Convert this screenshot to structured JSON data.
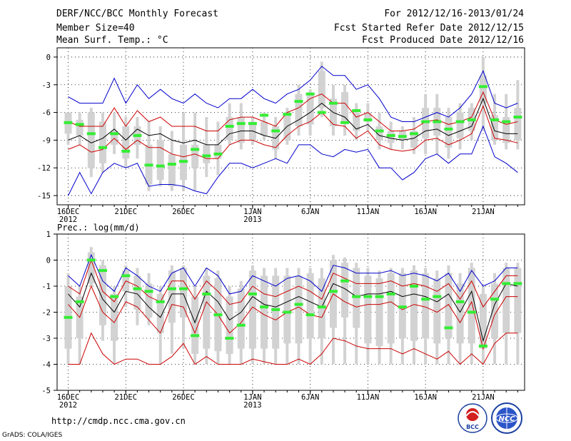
{
  "header": {
    "title": "DERF/NCC/BCC Monthly Forecast",
    "member_size": "Member Size=40",
    "variable": "Mean Surf. Temp.: °C",
    "period": "For 2012/12/16-2013/01/24",
    "started": "Fcst Started Refer Date 2012/12/15",
    "produced": "Fcst Produced Date 2012/12/16"
  },
  "footer": {
    "url": "http://cmdp.ncc.cma.gov.cn",
    "grads": "GrADS: COLA/IGES",
    "logo1_text": "BCC",
    "logo2_text": "NCC"
  },
  "colors": {
    "envelope": "#0000cc",
    "spread": "#cc0000",
    "mean": "#000000",
    "box": "#d2d2d2",
    "median": "#33ee33"
  },
  "chart_data": [
    {
      "type": "box",
      "title": "Mean Surf. Temp.: °C",
      "xlabel": "",
      "ylabel": "°C",
      "ylim": [
        -16,
        1
      ],
      "yticks": [
        0,
        -3,
        -6,
        -9,
        -12,
        -15
      ],
      "xtick_labels": [
        {
          "day": 0,
          "label": "16DEC",
          "sub": "2012"
        },
        {
          "day": 5,
          "label": "21DEC",
          "sub": ""
        },
        {
          "day": 10,
          "label": "26DEC",
          "sub": ""
        },
        {
          "day": 16,
          "label": "1JAN",
          "sub": "2013"
        },
        {
          "day": 21,
          "label": "6JAN",
          "sub": ""
        },
        {
          "day": 26,
          "label": "11JAN",
          "sub": ""
        },
        {
          "day": 31,
          "label": "16JAN",
          "sub": ""
        },
        {
          "day": 36,
          "label": "21JAN",
          "sub": ""
        }
      ],
      "days": 40,
      "series": [
        {
          "name": "max",
          "color_key": "envelope",
          "values": [
            -4.3,
            -5.0,
            -5.0,
            -5.0,
            -2.3,
            -5.0,
            -3.0,
            -4.5,
            -3.5,
            -4.5,
            -5.0,
            -4.0,
            -5.0,
            -5.5,
            -4.5,
            -4.5,
            -3.5,
            -4.5,
            -5.0,
            -4.0,
            -3.5,
            -2.5,
            -1.0,
            -2.0,
            -2.0,
            -3.5,
            -3.0,
            -4.5,
            -6.5,
            -7.0,
            -7.0,
            -6.5,
            -6.0,
            -6.5,
            -5.5,
            -4.0,
            -1.5,
            -5.0,
            -5.5,
            -5.0
          ]
        },
        {
          "name": "upper",
          "color_key": "spread",
          "values": [
            -7.0,
            -7.5,
            -7.5,
            -7.5,
            -5.5,
            -7.5,
            -5.8,
            -7.0,
            -6.5,
            -7.5,
            -7.5,
            -7.5,
            -8.0,
            -8.0,
            -6.8,
            -6.5,
            -6.5,
            -7.0,
            -7.5,
            -6.0,
            -5.5,
            -4.5,
            -4.0,
            -5.0,
            -5.0,
            -6.5,
            -6.0,
            -7.0,
            -8.0,
            -8.0,
            -7.8,
            -7.0,
            -6.8,
            -7.3,
            -7.0,
            -6.5,
            -3.8,
            -6.8,
            -7.3,
            -7.0
          ]
        },
        {
          "name": "mean",
          "color_key": "mean",
          "values": [
            -9.0,
            -8.5,
            -9.3,
            -8.8,
            -7.8,
            -9.0,
            -7.8,
            -8.5,
            -8.3,
            -9.0,
            -9.3,
            -9.0,
            -9.5,
            -9.5,
            -8.3,
            -8.0,
            -8.0,
            -8.5,
            -8.8,
            -7.5,
            -6.8,
            -6.0,
            -5.0,
            -6.0,
            -6.5,
            -7.8,
            -7.3,
            -8.5,
            -8.8,
            -9.0,
            -8.8,
            -8.0,
            -7.8,
            -8.5,
            -8.0,
            -7.5,
            -4.5,
            -8.0,
            -8.3,
            -8.3
          ]
        },
        {
          "name": "lower",
          "color_key": "spread",
          "values": [
            -10.0,
            -9.5,
            -10.3,
            -10.0,
            -8.8,
            -10.0,
            -9.0,
            -9.8,
            -9.8,
            -10.5,
            -10.8,
            -10.5,
            -11.0,
            -11.0,
            -9.5,
            -9.0,
            -9.0,
            -9.5,
            -9.8,
            -8.5,
            -7.5,
            -7.0,
            -6.0,
            -7.3,
            -7.5,
            -8.8,
            -8.0,
            -9.5,
            -10.0,
            -10.2,
            -10.0,
            -9.0,
            -8.8,
            -9.5,
            -9.0,
            -8.3,
            -5.3,
            -8.8,
            -9.0,
            -9.3
          ]
        },
        {
          "name": "min",
          "color_key": "envelope",
          "values": [
            -15.0,
            -12.5,
            -14.8,
            -12.5,
            -11.5,
            -12.0,
            -11.5,
            -14.0,
            -13.8,
            -13.8,
            -14.0,
            -14.5,
            -14.8,
            -13.0,
            -11.5,
            -11.5,
            -12.0,
            -11.5,
            -11.0,
            -11.5,
            -9.5,
            -9.5,
            -10.5,
            -10.8,
            -10.0,
            -10.3,
            -10.0,
            -12.0,
            -12.0,
            -13.3,
            -12.5,
            -11.0,
            -10.5,
            -11.5,
            -10.5,
            -10.5,
            -7.5,
            -10.8,
            -11.5,
            -12.5
          ]
        },
        {
          "name": "box_q1",
          "values": [
            -8.3,
            -8.5,
            -12.0,
            -11.5,
            -9.5,
            -11.0,
            -9.5,
            -13.8,
            -13.3,
            -14.0,
            -13.3,
            -12.0,
            -11.5,
            -11.0,
            -9.0,
            -9.3,
            -9.0,
            -8.5,
            -10.0,
            -9.0,
            -7.5,
            -7.3,
            -5.5,
            -7.5,
            -7.0,
            -8.0,
            -7.0,
            -9.0,
            -9.3,
            -9.0,
            -9.8,
            -8.8,
            -8.5,
            -9.8,
            -8.8,
            -8.0,
            -5.0,
            -9.0,
            -9.3,
            -9.0
          ]
        },
        {
          "name": "box_q3",
          "values": [
            -6.0,
            -6.8,
            -6.0,
            -7.0,
            -8.0,
            -7.5,
            -7.5,
            -9.5,
            -9.0,
            -10.5,
            -9.5,
            -9.5,
            -9.5,
            -9.5,
            -6.5,
            -6.5,
            -7.0,
            -7.0,
            -7.5,
            -6.0,
            -4.0,
            -4.0,
            -1.5,
            -4.5,
            -3.8,
            -6.0,
            -6.0,
            -7.5,
            -8.0,
            -8.0,
            -8.0,
            -5.5,
            -5.5,
            -6.5,
            -6.0,
            -5.5,
            -2.0,
            -6.3,
            -6.5,
            -5.5
          ]
        },
        {
          "name": "whisker_hi",
          "values": [
            -6.0,
            -6.0,
            -5.5,
            -6.0,
            -6.0,
            -6.5,
            -6.5,
            -7.0,
            -7.5,
            -8.0,
            -6.0,
            -6.0,
            -6.5,
            -7.0,
            -5.0,
            -5.0,
            -6.5,
            -6.0,
            -6.5,
            -5.5,
            -3.0,
            -3.5,
            -0.5,
            -3.0,
            -3.0,
            -5.0,
            -5.0,
            -6.0,
            -7.0,
            -7.5,
            -6.5,
            -4.0,
            -4.0,
            -5.5,
            -5.0,
            -5.0,
            0.0,
            -4.0,
            -4.0,
            -2.5
          ]
        },
        {
          "name": "whisker_lo",
          "values": [
            -9.5,
            -9.5,
            -13.0,
            -12.5,
            -10.5,
            -12.0,
            -11.0,
            -14.5,
            -14.0,
            -14.5,
            -14.5,
            -14.5,
            -13.0,
            -12.8,
            -9.5,
            -10.0,
            -9.5,
            -9.0,
            -11.0,
            -9.5,
            -8.5,
            -8.5,
            -6.5,
            -8.5,
            -8.5,
            -9.0,
            -8.0,
            -10.0,
            -10.0,
            -10.0,
            -10.5,
            -10.5,
            -10.5,
            -11.0,
            -10.0,
            -9.0,
            -8.0,
            -9.5,
            -10.0,
            -10.0
          ]
        },
        {
          "name": "median",
          "color_key": "median",
          "values": [
            -7.1,
            -7.3,
            -8.3,
            -9.8,
            -8.3,
            -10.2,
            -8.5,
            -11.7,
            -11.8,
            -11.6,
            -11.3,
            -10.0,
            -10.7,
            -10.5,
            -7.5,
            -7.2,
            -7.2,
            -6.3,
            -8.0,
            -6.2,
            -4.8,
            -4.0,
            -6.0,
            -5.0,
            -7.1,
            -5.8,
            -6.8,
            -8.0,
            -8.5,
            -8.6,
            -8.3,
            -7.0,
            -7.0,
            -7.8,
            -7.0,
            -6.8,
            -3.2,
            -6.8,
            -7.0,
            -6.5
          ]
        }
      ]
    },
    {
      "type": "box",
      "title": "Prec.: log(mm/d)",
      "xlabel": "",
      "ylabel": "log(mm/d)",
      "ylim": [
        -5,
        1
      ],
      "yticks": [
        1,
        0,
        -1,
        -2,
        -3,
        -4,
        -5
      ],
      "xtick_labels": [
        {
          "day": 0,
          "label": "16DEC",
          "sub": "2012"
        },
        {
          "day": 5,
          "label": "21DEC",
          "sub": ""
        },
        {
          "day": 10,
          "label": "26DEC",
          "sub": ""
        },
        {
          "day": 16,
          "label": "1JAN",
          "sub": "2013"
        },
        {
          "day": 21,
          "label": "6JAN",
          "sub": ""
        },
        {
          "day": 26,
          "label": "11JAN",
          "sub": ""
        },
        {
          "day": 31,
          "label": "16JAN",
          "sub": ""
        },
        {
          "day": 36,
          "label": "21JAN",
          "sub": ""
        }
      ],
      "days": 40,
      "series": [
        {
          "name": "max",
          "color_key": "envelope",
          "values": [
            -0.6,
            -1.0,
            0.2,
            -0.8,
            -1.2,
            -0.3,
            -0.6,
            -1.0,
            -1.2,
            -0.5,
            -0.3,
            -1.0,
            -0.3,
            -0.6,
            -1.3,
            -1.2,
            -0.6,
            -0.8,
            -1.0,
            -0.7,
            -0.6,
            -0.8,
            -1.2,
            -0.2,
            -0.3,
            -0.5,
            -0.5,
            -0.5,
            -0.4,
            -0.6,
            -0.5,
            -0.6,
            -0.8,
            -0.5,
            -1.2,
            -0.4,
            -1.0,
            -0.8,
            -0.3,
            -0.3
          ]
        },
        {
          "name": "upper",
          "color_key": "spread",
          "values": [
            -1.0,
            -1.3,
            0.0,
            -1.2,
            -1.6,
            -0.8,
            -1.0,
            -1.4,
            -1.6,
            -0.8,
            -0.8,
            -1.5,
            -0.8,
            -1.2,
            -1.7,
            -1.6,
            -1.0,
            -1.3,
            -1.4,
            -1.2,
            -1.0,
            -1.2,
            -1.5,
            -0.5,
            -0.7,
            -0.9,
            -0.9,
            -0.9,
            -0.8,
            -1.0,
            -0.9,
            -1.0,
            -1.2,
            -0.9,
            -1.5,
            -0.8,
            -1.8,
            -1.2,
            -0.6,
            -0.6
          ]
        },
        {
          "name": "mean",
          "color_key": "mean",
          "values": [
            -1.3,
            -1.8,
            -0.5,
            -1.5,
            -2.0,
            -1.2,
            -1.3,
            -1.8,
            -2.2,
            -1.3,
            -1.3,
            -2.4,
            -1.2,
            -1.6,
            -2.3,
            -2.0,
            -1.4,
            -1.7,
            -1.8,
            -1.6,
            -1.4,
            -1.6,
            -1.8,
            -0.9,
            -1.1,
            -1.4,
            -1.3,
            -1.3,
            -1.2,
            -1.4,
            -1.3,
            -1.4,
            -1.6,
            -1.3,
            -2.0,
            -1.2,
            -3.1,
            -1.7,
            -0.9,
            -1.0
          ]
        },
        {
          "name": "lower",
          "color_key": "spread",
          "values": [
            -1.7,
            -2.2,
            -1.0,
            -2.0,
            -2.4,
            -1.6,
            -1.8,
            -2.3,
            -2.8,
            -1.7,
            -1.8,
            -2.8,
            -1.6,
            -2.1,
            -2.8,
            -2.4,
            -1.8,
            -2.1,
            -2.3,
            -2.0,
            -1.8,
            -2.1,
            -2.2,
            -1.3,
            -1.6,
            -1.8,
            -1.7,
            -1.7,
            -1.6,
            -1.9,
            -1.7,
            -1.8,
            -2.0,
            -1.7,
            -2.4,
            -1.6,
            -3.4,
            -2.1,
            -1.4,
            -1.4
          ]
        },
        {
          "name": "min",
          "color_key": "spread",
          "values": [
            -4.0,
            -4.0,
            -2.8,
            -3.6,
            -4.0,
            -3.8,
            -3.8,
            -4.0,
            -4.0,
            -3.7,
            -3.2,
            -4.0,
            -3.7,
            -4.0,
            -4.0,
            -4.0,
            -3.8,
            -3.9,
            -4.0,
            -4.0,
            -3.8,
            -4.0,
            -3.6,
            -3.0,
            -3.1,
            -3.3,
            -3.4,
            -3.4,
            -3.4,
            -3.6,
            -3.4,
            -3.6,
            -3.8,
            -3.5,
            -4.0,
            -3.6,
            -4.0,
            -3.2,
            -2.8,
            -2.8
          ]
        },
        {
          "name": "box_q1",
          "values": [
            -3.4,
            -3.0,
            -0.9,
            -2.5,
            -3.1,
            -1.2,
            -1.9,
            -2.2,
            -2.8,
            -2.4,
            -2.2,
            -3.6,
            -3.4,
            -3.5,
            -3.6,
            -3.4,
            -3.4,
            -3.4,
            -3.4,
            -3.2,
            -3.2,
            -3.0,
            -3.0,
            -2.6,
            -2.2,
            -2.6,
            -3.2,
            -3.3,
            -3.2,
            -3.0,
            -3.1,
            -3.0,
            -3.2,
            -3.0,
            -3.2,
            -3.2,
            -3.4,
            -3.0,
            -2.8,
            -2.8
          ]
        },
        {
          "name": "box_q3",
          "values": [
            -1.0,
            -1.4,
            0.3,
            -0.2,
            -1.3,
            -0.4,
            -0.6,
            -0.9,
            -1.3,
            -0.4,
            -0.3,
            -1.4,
            -0.6,
            -0.7,
            -1.4,
            -1.1,
            -0.4,
            -0.6,
            -0.6,
            -0.6,
            -0.6,
            -0.5,
            -0.7,
            0.0,
            -0.1,
            -0.3,
            -0.6,
            -0.7,
            -0.5,
            -0.5,
            -0.4,
            -0.5,
            -0.7,
            -0.5,
            -0.9,
            -0.3,
            -1.3,
            -0.9,
            -0.3,
            -0.3
          ]
        },
        {
          "name": "whisker_hi",
          "values": [
            -0.5,
            -1.0,
            0.5,
            0.0,
            -1.0,
            -0.2,
            -0.3,
            -0.5,
            -1.0,
            -0.2,
            -0.2,
            -1.0,
            -0.3,
            -0.4,
            -1.0,
            -0.8,
            -0.2,
            -0.3,
            -0.3,
            -0.3,
            -0.3,
            -0.3,
            -0.3,
            0.2,
            0.1,
            -0.1,
            -0.3,
            -0.4,
            -0.3,
            -0.3,
            -0.2,
            -0.3,
            -0.4,
            -0.2,
            -0.5,
            -0.1,
            -1.0,
            -0.5,
            -0.1,
            -0.1
          ]
        },
        {
          "name": "whisker_lo",
          "values": [
            -4.0,
            -4.0,
            -1.0,
            -3.1,
            -4.0,
            -1.8,
            -2.5,
            -2.5,
            -4.0,
            -3.6,
            -3.4,
            -4.0,
            -4.0,
            -4.0,
            -4.0,
            -4.0,
            -4.0,
            -4.0,
            -4.0,
            -4.0,
            -4.0,
            -4.0,
            -4.0,
            -4.0,
            -4.0,
            -4.0,
            -4.0,
            -4.0,
            -4.0,
            -4.0,
            -4.0,
            -4.0,
            -4.0,
            -4.0,
            -4.0,
            -4.0,
            -4.0,
            -4.0,
            -4.0,
            -4.0
          ]
        },
        {
          "name": "median",
          "color_key": "median",
          "values": [
            -2.2,
            -1.6,
            0.0,
            -0.4,
            -1.4,
            -0.6,
            -1.1,
            -1.2,
            -1.6,
            -1.1,
            -1.1,
            -2.9,
            -1.3,
            -2.1,
            -3.0,
            -2.5,
            -1.3,
            -1.8,
            -1.9,
            -2.0,
            -1.7,
            -2.1,
            -1.8,
            -1.2,
            -0.8,
            -1.4,
            -1.4,
            -1.4,
            -1.3,
            -1.8,
            -1.0,
            -1.5,
            -1.4,
            -2.6,
            -1.6,
            -2.0,
            -3.3,
            -1.5,
            -0.9,
            -0.9
          ]
        }
      ]
    }
  ]
}
